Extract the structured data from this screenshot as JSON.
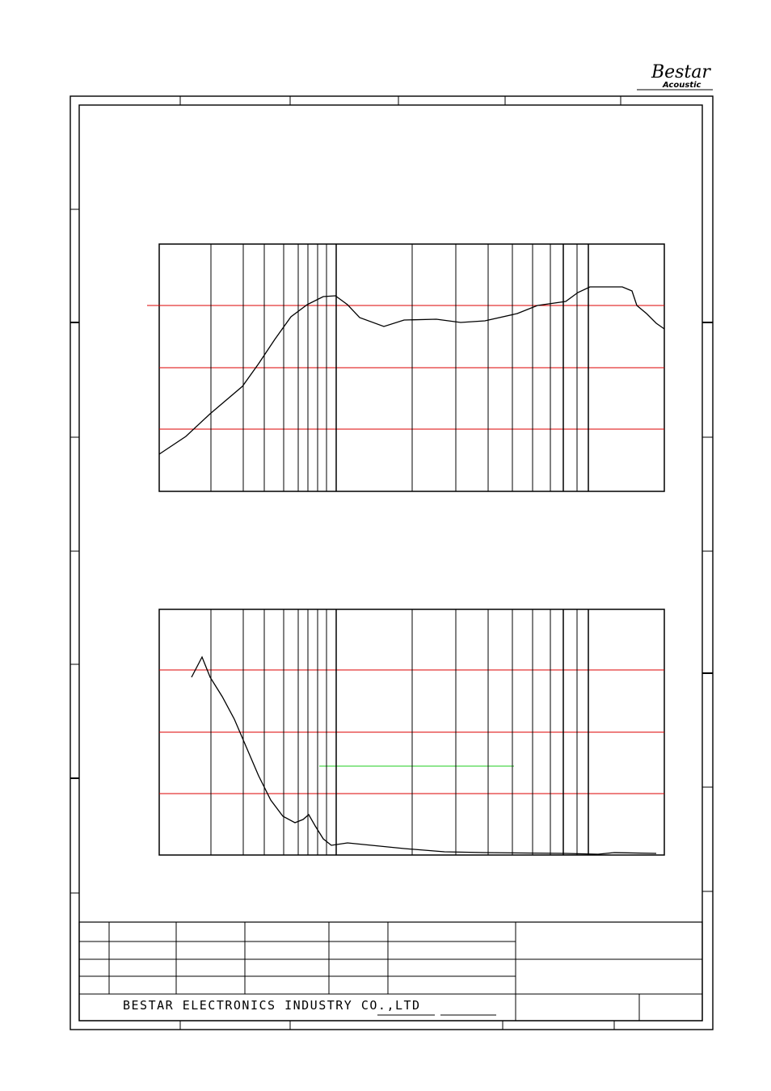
{
  "header": {
    "logo": "Bestar",
    "logo_sub": "Acoustic"
  },
  "title_block": {
    "company": "BESTAR ELECTRONICS INDUSTRY CO.,LTD"
  }
}
